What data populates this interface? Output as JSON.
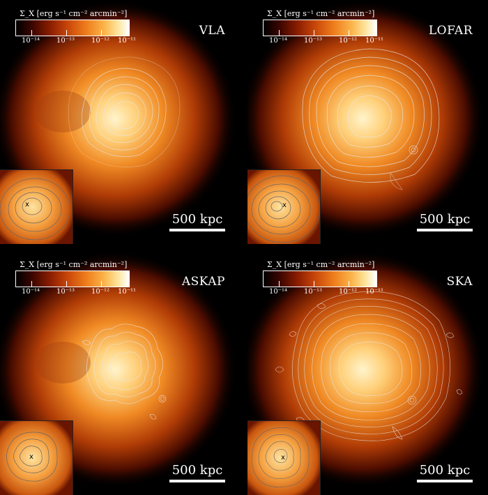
{
  "colorbar": {
    "label": "Σ_X [erg s⁻¹ cm⁻² arcmin⁻²]",
    "ticks": [
      "10⁻¹⁴",
      "10⁻¹³",
      "10⁻¹²",
      "10⁻¹¹"
    ]
  },
  "panels": [
    {
      "telescope": "VLA",
      "scale_label": "500 kpc",
      "inset_marker": "x",
      "contour_level": "sparse"
    },
    {
      "telescope": "LOFAR",
      "scale_label": "500 kpc",
      "inset_marker": "x",
      "contour_level": "medium"
    },
    {
      "telescope": "ASKAP",
      "scale_label": "500 kpc",
      "inset_marker": "x",
      "contour_level": "patchy"
    },
    {
      "telescope": "SKA",
      "scale_label": "500 kpc",
      "inset_marker": "x",
      "contour_level": "dense"
    }
  ],
  "colors": {
    "background": "#000000",
    "core": "#fff2c6",
    "mid": "#f08a24",
    "outer": "#7a1a00",
    "contour": "#e8e8e8"
  }
}
